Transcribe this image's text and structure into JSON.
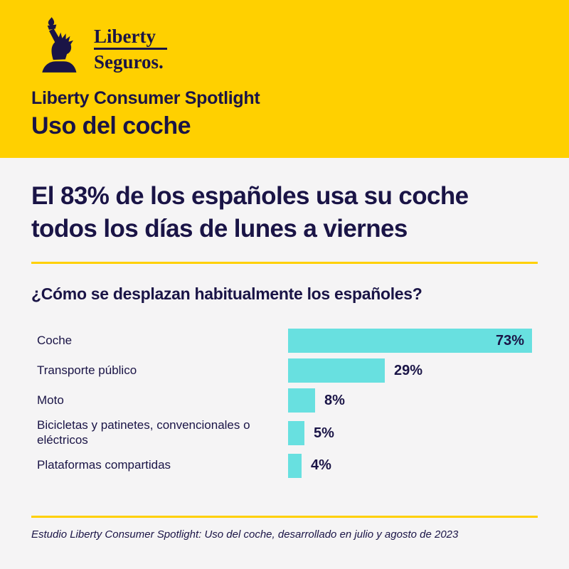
{
  "brand": {
    "name_line1": "Liberty",
    "name_line2": "Seguros",
    "suffix": "."
  },
  "header": {
    "kicker": "Liberty Consumer Spotlight",
    "title": "Uso del coche"
  },
  "headline": {
    "line1": "El 83% de los españoles usa su coche",
    "line2": "todos los días de lunes a viernes"
  },
  "section": {
    "question": "¿Cómo se desplazan habitualmente los españoles?"
  },
  "chart_data": {
    "type": "bar",
    "orientation": "horizontal",
    "title": "¿Cómo se desplazan habitualmente los españoles?",
    "categories": [
      "Coche",
      "Transporte público",
      "Moto",
      "Bicicletas y patinetes, convencionales o eléctricos",
      "Plataformas compartidas"
    ],
    "values": [
      73,
      29,
      8,
      5,
      4
    ],
    "value_labels": [
      "73%",
      "29%",
      "8%",
      "5%",
      "4%"
    ],
    "unit": "%",
    "xlim": [
      0,
      73
    ],
    "grid": false,
    "legend": false,
    "bar_color": "#68E0E0",
    "value_label_color": "#1A1446"
  },
  "footer": {
    "source": "Estudio Liberty Consumer Spotlight: Uso del coche, desarrollado en julio y agosto de 2023"
  },
  "colors": {
    "yellow": "#FFD000",
    "navy": "#1A1446",
    "teal": "#68E0E0",
    "background": "#F5F4F5"
  }
}
